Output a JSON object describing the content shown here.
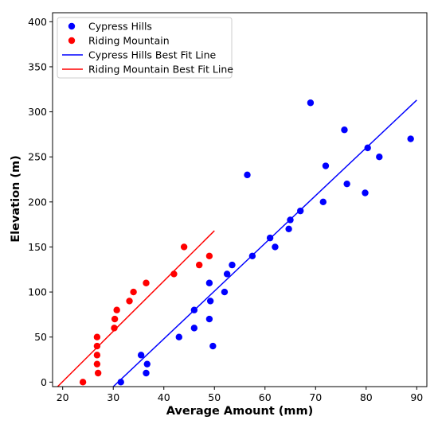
{
  "chart_data": {
    "type": "scatter",
    "title": "",
    "xlabel": "Average Amount (mm)",
    "ylabel": "Elevation (m)",
    "xlim": [
      18,
      92
    ],
    "ylim": [
      -5,
      410
    ],
    "xticks": [
      20,
      30,
      40,
      50,
      60,
      70,
      80,
      90
    ],
    "yticks": [
      0,
      50,
      100,
      150,
      200,
      250,
      300,
      350,
      400
    ],
    "grid": false,
    "legend_position": "top-left",
    "series": [
      {
        "name": "Cypress Hills",
        "kind": "scatter",
        "color": "#0000ff",
        "points": [
          [
            31.5,
            0
          ],
          [
            35.5,
            30
          ],
          [
            36.5,
            10
          ],
          [
            36.7,
            20
          ],
          [
            43,
            50
          ],
          [
            46,
            60
          ],
          [
            46,
            80
          ],
          [
            49,
            70
          ],
          [
            49,
            110
          ],
          [
            49.2,
            90
          ],
          [
            49.7,
            40
          ],
          [
            52,
            100
          ],
          [
            52.5,
            120
          ],
          [
            53.5,
            130
          ],
          [
            56.5,
            230
          ],
          [
            57.5,
            140
          ],
          [
            61,
            160
          ],
          [
            62,
            150
          ],
          [
            64.7,
            170
          ],
          [
            65,
            180
          ],
          [
            67,
            190
          ],
          [
            69,
            310
          ],
          [
            71.5,
            200
          ],
          [
            72,
            240
          ],
          [
            75.7,
            280
          ],
          [
            76.2,
            220
          ],
          [
            79.8,
            210
          ],
          [
            80.3,
            260
          ],
          [
            82.6,
            250
          ],
          [
            88.8,
            270
          ]
        ]
      },
      {
        "name": "Riding Mountain",
        "kind": "scatter",
        "color": "#ff0000",
        "points": [
          [
            24,
            0
          ],
          [
            26.8,
            50
          ],
          [
            26.8,
            40
          ],
          [
            26.8,
            30
          ],
          [
            26.8,
            20
          ],
          [
            27,
            10
          ],
          [
            30.2,
            60
          ],
          [
            30.3,
            70
          ],
          [
            30.7,
            80
          ],
          [
            33.2,
            90
          ],
          [
            34,
            100
          ],
          [
            36.5,
            110
          ],
          [
            42,
            120
          ],
          [
            44,
            150
          ],
          [
            47,
            130
          ],
          [
            49,
            140
          ]
        ]
      },
      {
        "name": "Cypress Hills Best Fit Line",
        "kind": "line",
        "color": "#0000ff",
        "points": [
          [
            30,
            -5
          ],
          [
            90,
            313
          ]
        ]
      },
      {
        "name": "Riding Mountain Best Fit Line",
        "kind": "line",
        "color": "#ff0000",
        "points": [
          [
            19,
            -5
          ],
          [
            50,
            168
          ]
        ]
      }
    ]
  }
}
